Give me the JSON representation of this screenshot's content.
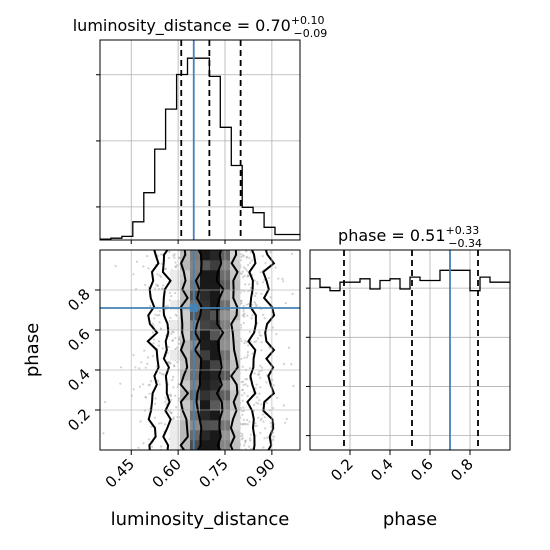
{
  "chart_data": [
    {
      "panel": "luminosity_distance histogram",
      "type": "histogram",
      "title": "luminosity_distance = 0.70",
      "title_sup": "+0.10",
      "title_sub": "−0.09",
      "xlim": [
        0.35,
        0.99
      ],
      "bin_edges": [
        0.35,
        0.385,
        0.42,
        0.455,
        0.49,
        0.525,
        0.56,
        0.595,
        0.63,
        0.665,
        0.7,
        0.735,
        0.77,
        0.805,
        0.84,
        0.875,
        0.91,
        0.945,
        0.99
      ],
      "counts": [
        0.5,
        1,
        2,
        10,
        26,
        50,
        72,
        91,
        100,
        100,
        90,
        62,
        41,
        18,
        15,
        7,
        3,
        3
      ],
      "ylim": [
        0,
        110
      ],
      "quantiles": [
        0.61,
        0.7,
        0.8
      ],
      "truth": 0.65
    },
    {
      "panel": "phase histogram",
      "type": "histogram",
      "title": "phase = 0.51",
      "title_sup": "+0.33",
      "title_sub": "−0.34",
      "xlim": [
        0.0,
        1.0
      ],
      "bin_edges": [
        0.0,
        0.05,
        0.1,
        0.15,
        0.2,
        0.25,
        0.3,
        0.35,
        0.4,
        0.45,
        0.5,
        0.55,
        0.6,
        0.65,
        0.7,
        0.75,
        0.8,
        0.85,
        0.9,
        0.95,
        1.0
      ],
      "counts": [
        101,
        96,
        94,
        99,
        99,
        101,
        95,
        100,
        101,
        95,
        102,
        100,
        100,
        106,
        106,
        106,
        94,
        102,
        99,
        99
      ],
      "ylim": [
        0,
        118
      ],
      "quantiles": [
        0.17,
        0.51,
        0.84
      ],
      "truth": 0.7,
      "xticks": [
        "0.2",
        "0.4",
        "0.6",
        "0.8"
      ],
      "xtick_values": [
        0.2,
        0.4,
        0.6,
        0.8
      ],
      "xlabel": "phase"
    },
    {
      "panel": "2D density",
      "type": "heatmap",
      "xlim": [
        0.35,
        0.99
      ],
      "ylim": [
        0.0,
        1.0
      ],
      "truth": [
        0.65,
        0.71
      ],
      "xticks": [
        "0.45",
        "0.60",
        "0.75",
        "0.90"
      ],
      "xtick_values": [
        0.45,
        0.6,
        0.75,
        0.9
      ],
      "yticks": [
        "0.2",
        "0.4",
        "0.6",
        "0.8"
      ],
      "ytick_values": [
        0.2,
        0.4,
        0.6,
        0.8
      ],
      "xlabel": "luminosity_distance",
      "ylabel": "phase",
      "contour_levels": [
        {
          "left": 0.665,
          "right": 0.735,
          "wiggle": 0.012
        },
        {
          "left": 0.62,
          "right": 0.78,
          "wiggle": 0.012
        },
        {
          "left": 0.565,
          "right": 0.835,
          "wiggle": 0.014
        },
        {
          "left": 0.52,
          "right": 0.89,
          "wiggle": 0.018
        }
      ]
    }
  ],
  "colors": {
    "truth": "#4682b4",
    "hist": "#000000",
    "grid": "#b0b0b0",
    "points": "#9a9a9a"
  }
}
